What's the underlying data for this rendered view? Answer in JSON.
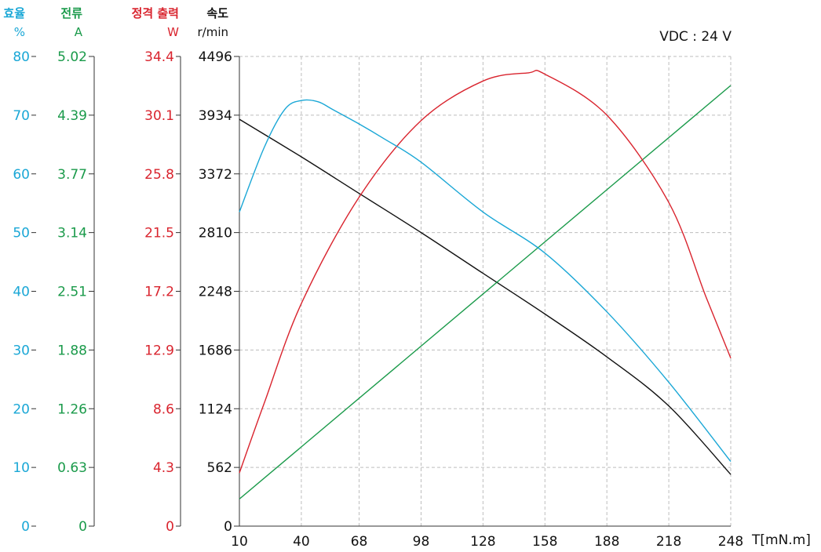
{
  "chart_data": {
    "type": "line",
    "note": "VDC : 24 V",
    "xlabel": "T[mN.m]",
    "x_ticks": [
      10,
      40,
      68,
      98,
      128,
      158,
      188,
      218,
      248
    ],
    "xlim": [
      10,
      248
    ],
    "axes": [
      {
        "id": "efficiency",
        "label": "효율",
        "unit": "%",
        "color": "#1aa7d6",
        "ticks": [
          "80",
          "70",
          "60",
          "50",
          "40",
          "30",
          "20",
          "10",
          "0"
        ],
        "range": [
          0,
          80
        ]
      },
      {
        "id": "current",
        "label": "전류",
        "unit": "A",
        "color": "#1a9a4a",
        "ticks": [
          "5.02",
          "4.39",
          "3.77",
          "3.14",
          "2.51",
          "1.88",
          "1.26",
          "0.63",
          "0"
        ],
        "range": [
          0,
          5.02
        ]
      },
      {
        "id": "power",
        "label": "정격 출력",
        "unit": "W",
        "color": "#d9242e",
        "ticks": [
          "34.4",
          "30.1",
          "25.8",
          "21.5",
          "17.2",
          "12.9",
          "8.6",
          "4.3",
          "0"
        ],
        "range": [
          0,
          34.4
        ]
      },
      {
        "id": "speed",
        "label": "속도",
        "unit": "r/min",
        "color": "#111111",
        "ticks": [
          "4496",
          "3934",
          "3372",
          "2810",
          "2248",
          "1686",
          "1124",
          "562",
          "0"
        ],
        "range": [
          0,
          4496
        ]
      }
    ],
    "series": [
      {
        "axis": "speed",
        "color": "#111111",
        "x": [
          10,
          40,
          68,
          98,
          128,
          158,
          188,
          218,
          248
        ],
        "y": [
          3895,
          3535,
          3185,
          2810,
          2420,
          2030,
          1620,
          1150,
          495
        ]
      },
      {
        "axis": "current",
        "color": "#1a9a4a",
        "x": [
          10,
          248
        ],
        "y": [
          0.29,
          4.71
        ]
      },
      {
        "axis": "power",
        "color": "#d9242e",
        "x": [
          10,
          22,
          40,
          68,
          98,
          128,
          150,
          158,
          188,
          218,
          236,
          248
        ],
        "y": [
          3.9,
          9.0,
          16.3,
          24.1,
          29.7,
          32.6,
          33.2,
          33.1,
          30.1,
          23.7,
          16.8,
          12.3
        ]
      },
      {
        "axis": "efficiency",
        "color": "#1aa7d6",
        "x": [
          10,
          22,
          32,
          40,
          48,
          55,
          68,
          80,
          98,
          128,
          158,
          188,
          218,
          248
        ],
        "y": [
          53.5,
          64.5,
          71.0,
          72.5,
          72.3,
          71.0,
          68.5,
          66.0,
          62.0,
          53.5,
          46.5,
          36.5,
          24.5,
          11.0
        ]
      }
    ]
  }
}
